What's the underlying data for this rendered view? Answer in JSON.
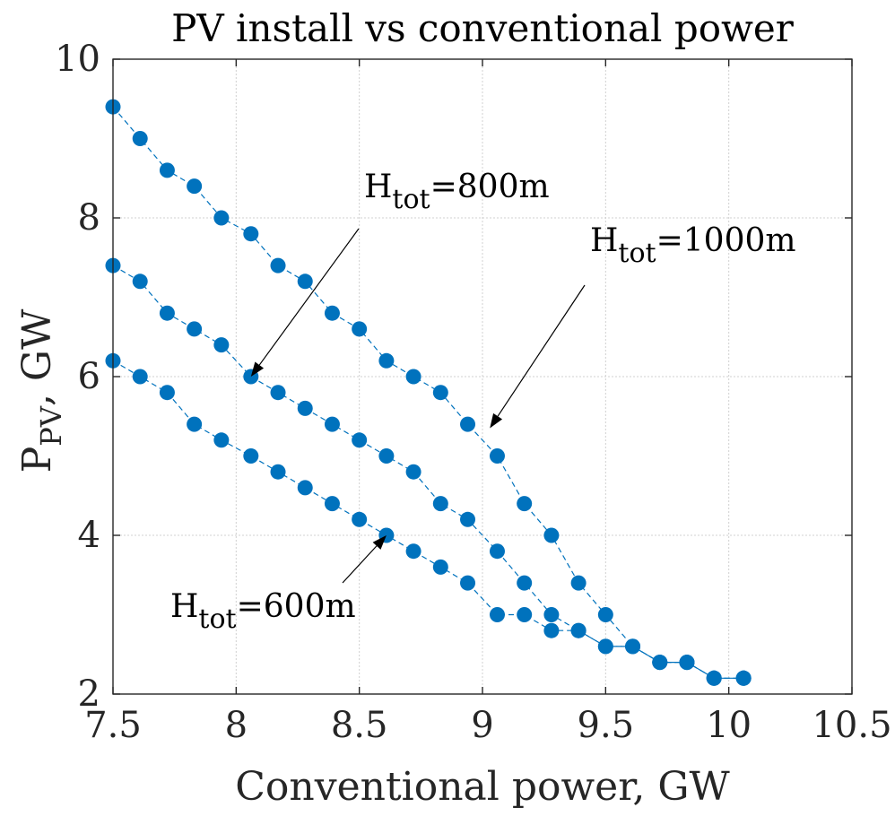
{
  "chart_data": {
    "type": "scatter",
    "title": "PV install vs conventional power",
    "xlabel": "Conventional power, GW",
    "ylabel": {
      "main": "P",
      "sub": "PV",
      "suffix": ", GW"
    },
    "xlim": [
      7.5,
      10.5
    ],
    "ylim": [
      2,
      10
    ],
    "xticks": [
      "7.5",
      "8",
      "8.5",
      "9",
      "9.5",
      "10",
      "10.5"
    ],
    "yticks": [
      "2",
      "4",
      "6",
      "8",
      "10"
    ],
    "grid": true,
    "marker_color": "#0072BD",
    "series": [
      {
        "name": "H_tot=600m",
        "x": [
          7.5,
          7.61,
          7.72,
          7.83,
          7.94,
          8.06,
          8.17,
          8.28,
          8.39,
          8.5,
          8.61,
          8.72,
          8.83,
          8.94,
          9.06,
          9.17,
          9.28,
          9.39,
          9.5,
          9.61,
          9.72,
          9.83,
          9.94,
          10.06
        ],
        "y": [
          6.2,
          6.0,
          5.8,
          5.4,
          5.2,
          5.0,
          4.8,
          4.6,
          4.4,
          4.2,
          4.0,
          3.8,
          3.6,
          3.4,
          3.0,
          3.0,
          2.8,
          2.8,
          2.6,
          2.6,
          2.4,
          2.4,
          2.2,
          2.2
        ]
      },
      {
        "name": "H_tot=800m",
        "x": [
          7.5,
          7.61,
          7.72,
          7.83,
          7.94,
          8.06,
          8.17,
          8.28,
          8.39,
          8.5,
          8.61,
          8.72,
          8.83,
          8.94,
          9.06,
          9.17,
          9.28,
          9.39,
          9.5,
          9.61,
          9.72,
          9.83,
          9.94,
          10.06
        ],
        "y": [
          7.4,
          7.2,
          6.8,
          6.6,
          6.4,
          6.0,
          5.8,
          5.6,
          5.4,
          5.2,
          5.0,
          4.8,
          4.4,
          4.2,
          3.8,
          3.4,
          3.0,
          2.8,
          2.6,
          2.6,
          2.4,
          2.4,
          2.2,
          2.2
        ]
      },
      {
        "name": "H_tot=1000m",
        "x": [
          7.5,
          7.61,
          7.72,
          7.83,
          7.94,
          8.06,
          8.17,
          8.28,
          8.39,
          8.5,
          8.61,
          8.72,
          8.83,
          8.94,
          9.06,
          9.17,
          9.28,
          9.39,
          9.5,
          9.61,
          9.72,
          9.83,
          9.94,
          10.06
        ],
        "y": [
          9.4,
          9.0,
          8.6,
          8.4,
          8.0,
          7.8,
          7.4,
          7.2,
          6.8,
          6.6,
          6.2,
          6.0,
          5.8,
          5.4,
          5.0,
          4.4,
          4.0,
          3.4,
          3.0,
          2.6,
          2.4,
          2.4,
          2.2,
          2.2
        ]
      }
    ],
    "annotations": [
      {
        "id": "a800",
        "main": "H",
        "sub": "tot",
        "rest": "=800m",
        "target_x": 8.06,
        "target_y": 6.0
      },
      {
        "id": "a1000",
        "main": "H",
        "sub": "tot",
        "rest": "=1000m",
        "target_x": 9.03,
        "target_y": 5.35
      },
      {
        "id": "a600",
        "main": "H",
        "sub": "tot",
        "rest": "=600m",
        "target_x": 8.61,
        "target_y": 4.0
      }
    ]
  }
}
